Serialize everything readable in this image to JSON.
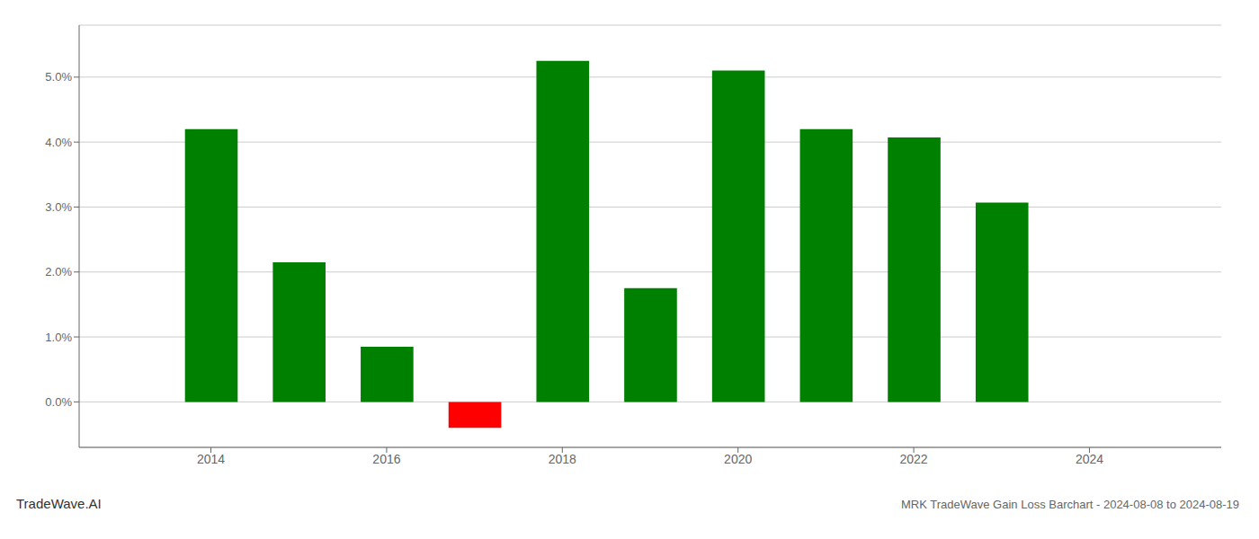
{
  "chart_data": {
    "type": "bar",
    "title": "MRK TradeWave Gain Loss Barchart - 2024-08-08 to 2024-08-19",
    "annotations": [
      "TradeWave.AI"
    ],
    "x": [
      2014,
      2015,
      2016,
      2017,
      2018,
      2019,
      2020,
      2021,
      2022,
      2023
    ],
    "values": [
      0.042,
      0.0215,
      0.0085,
      -0.004,
      0.0525,
      0.0175,
      0.051,
      0.042,
      0.0407,
      0.0307
    ],
    "colors": [
      "#008000",
      "#008000",
      "#008000",
      "#ff0000",
      "#008000",
      "#008000",
      "#008000",
      "#008000",
      "#008000",
      "#008000"
    ],
    "xlim": [
      2012.5,
      2025.5
    ],
    "xticks": [
      2014,
      2016,
      2018,
      2020,
      2022,
      2024
    ],
    "ylim": [
      -0.007,
      0.058
    ],
    "yticks": [
      {
        "value": 0.0,
        "label": "0.0%"
      },
      {
        "value": 0.01,
        "label": "1.0%"
      },
      {
        "value": 0.02,
        "label": "2.0%"
      },
      {
        "value": 0.03,
        "label": "3.0%"
      },
      {
        "value": 0.04,
        "label": "4.0%"
      },
      {
        "value": 0.05,
        "label": "5.0%"
      }
    ],
    "grid": true
  }
}
